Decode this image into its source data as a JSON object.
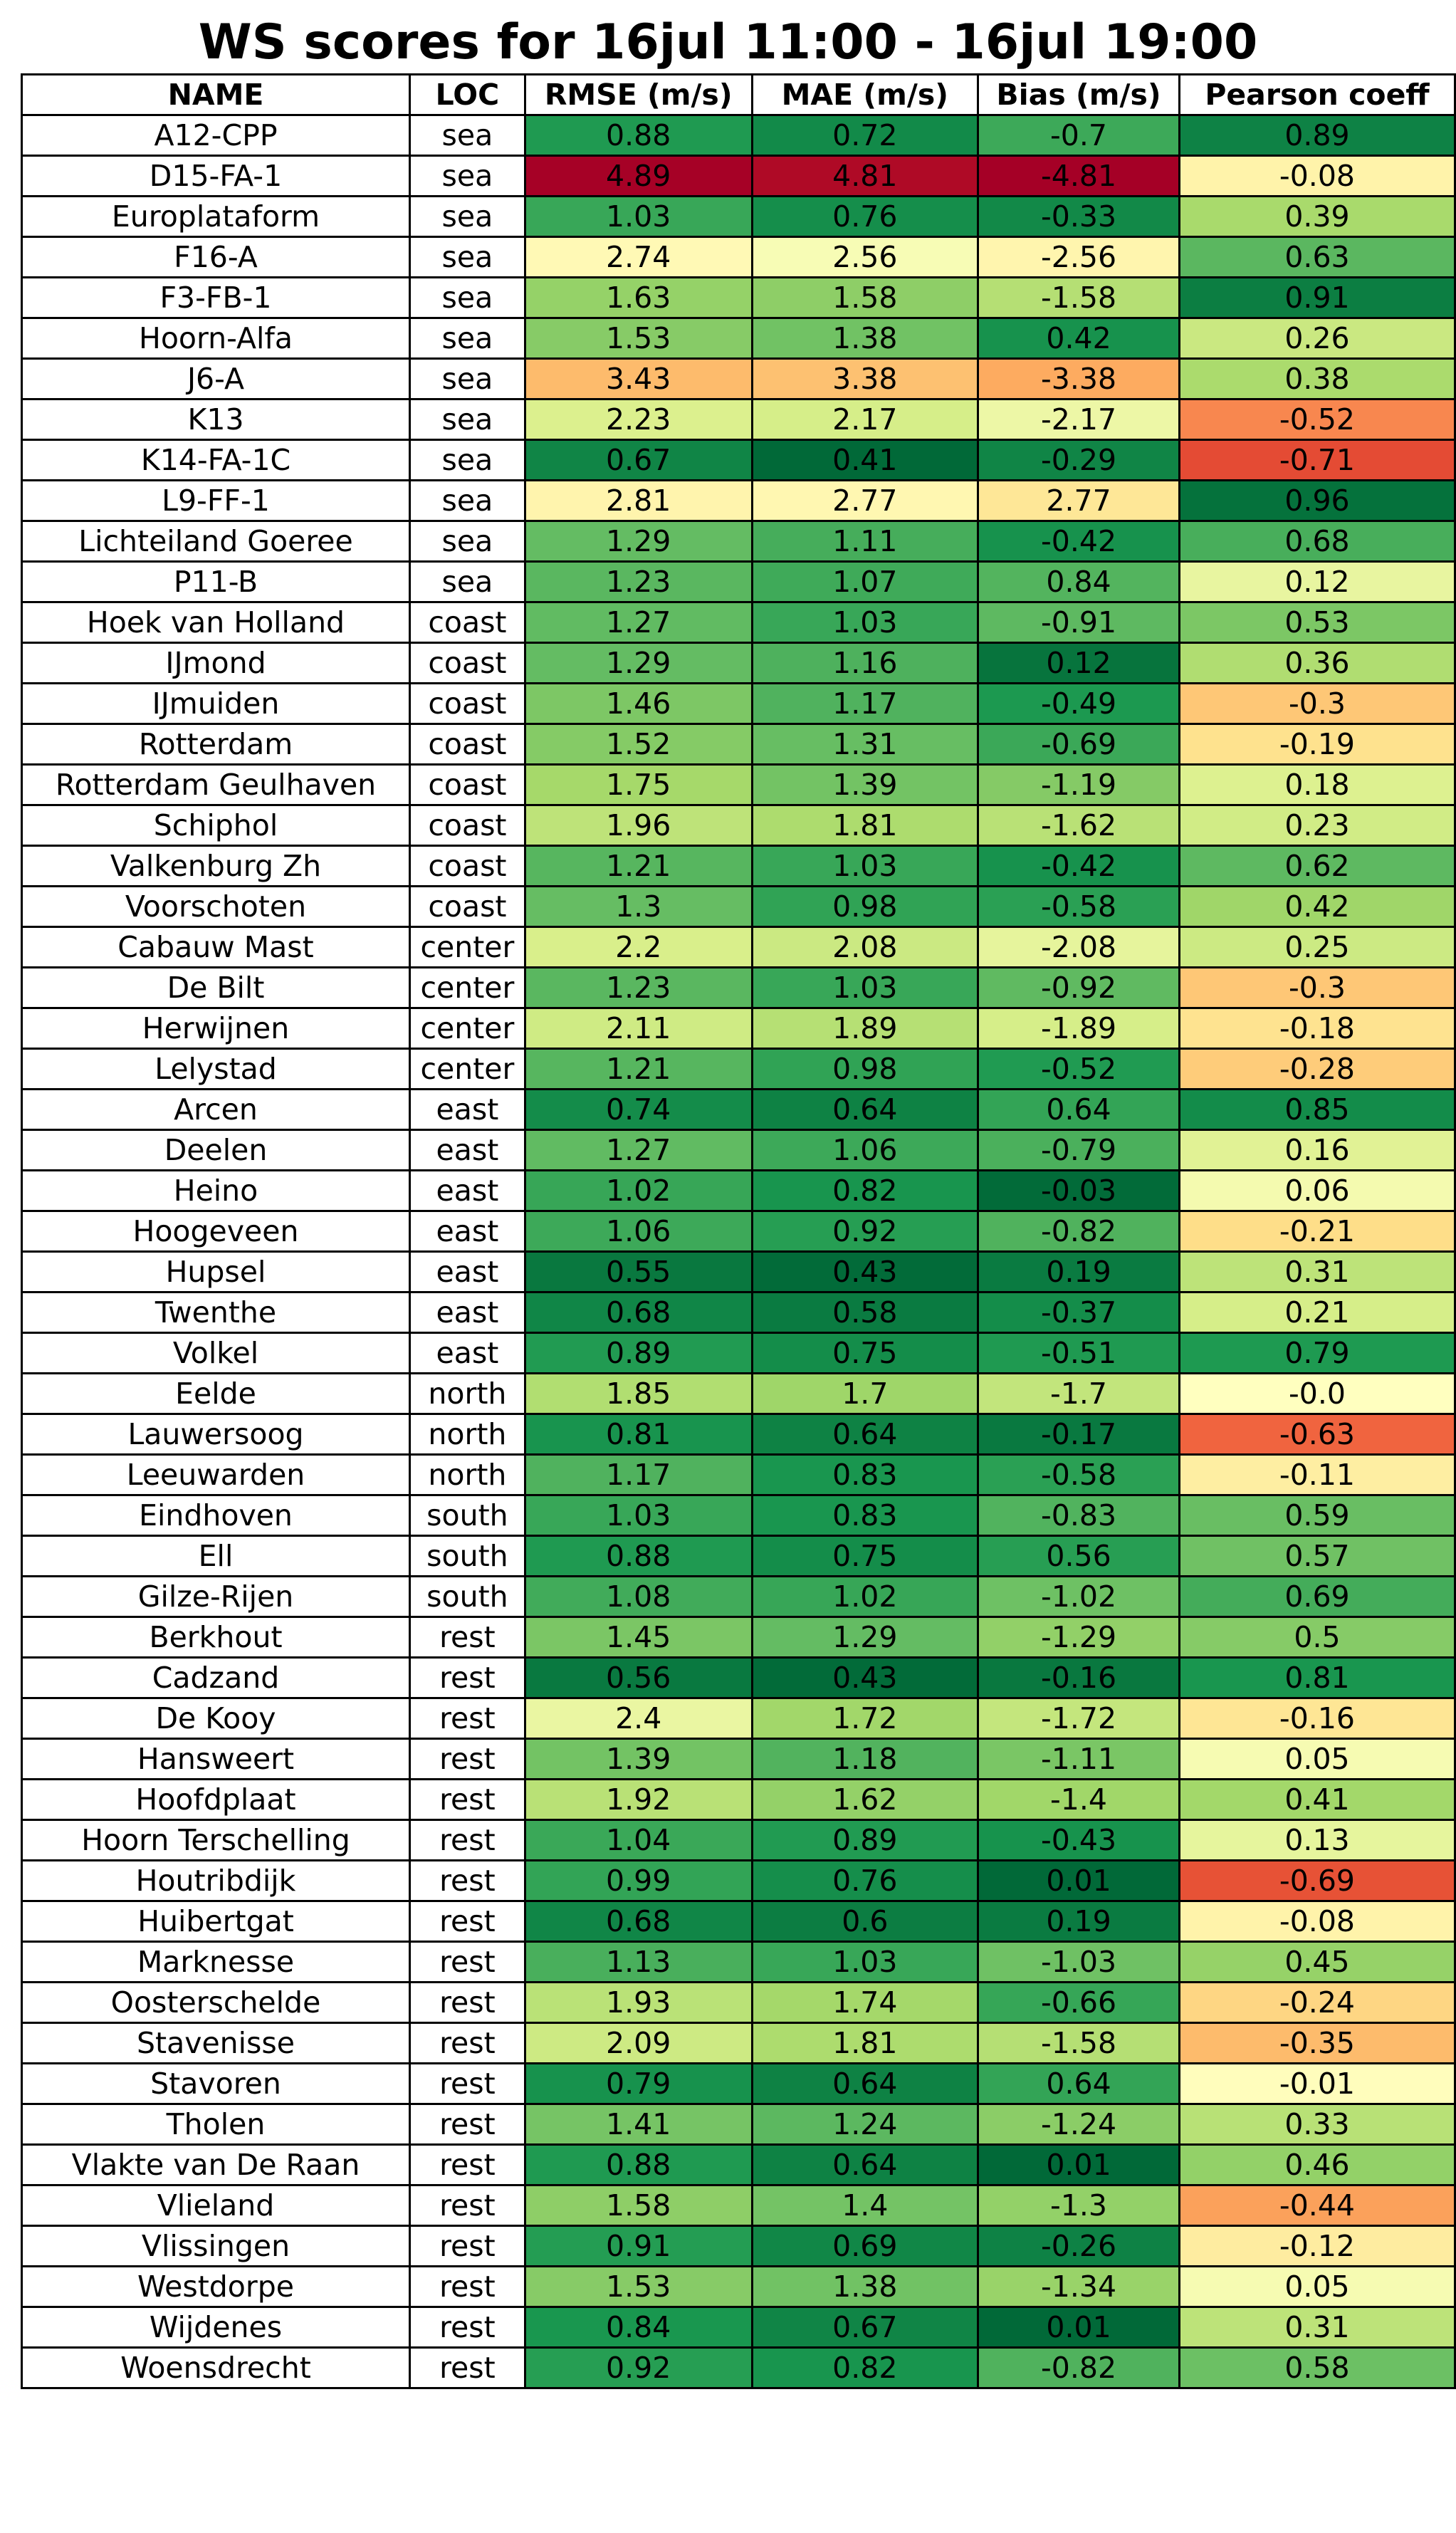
{
  "chart_data": {
    "type": "table",
    "title": "WS scores for 16jul 11:00 - 16jul 19:00",
    "columns": [
      "NAME",
      "LOC",
      "RMSE (m/s)",
      "MAE (m/s)",
      "Bias (m/s)",
      "Pearson coeff"
    ],
    "colors": {
      "red": "#a50026",
      "orange": "#f88d52",
      "yellow": "#ffffbf",
      "lightgreen": "#a6d96a",
      "green": "#1a9850",
      "darkgreen": "#006837"
    },
    "rows": [
      [
        "A12-CPP",
        "sea",
        "0.88",
        "0.72",
        "-0.7",
        "0.89"
      ],
      [
        "D15-FA-1",
        "sea",
        "4.89",
        "4.81",
        "-4.81",
        "-0.08"
      ],
      [
        "Europlataform",
        "sea",
        "1.03",
        "0.76",
        "-0.33",
        "0.39"
      ],
      [
        "F16-A",
        "sea",
        "2.74",
        "2.56",
        "-2.56",
        "0.63"
      ],
      [
        "F3-FB-1",
        "sea",
        "1.63",
        "1.58",
        "-1.58",
        "0.91"
      ],
      [
        "Hoorn-Alfa",
        "sea",
        "1.53",
        "1.38",
        "0.42",
        "0.26"
      ],
      [
        "J6-A",
        "sea",
        "3.43",
        "3.38",
        "-3.38",
        "0.38"
      ],
      [
        "K13",
        "sea",
        "2.23",
        "2.17",
        "-2.17",
        "-0.52"
      ],
      [
        "K14-FA-1C",
        "sea",
        "0.67",
        "0.41",
        "-0.29",
        "-0.71"
      ],
      [
        "L9-FF-1",
        "sea",
        "2.81",
        "2.77",
        "2.77",
        "0.96"
      ],
      [
        "Lichteiland Goeree",
        "sea",
        "1.29",
        "1.11",
        "-0.42",
        "0.68"
      ],
      [
        "P11-B",
        "sea",
        "1.23",
        "1.07",
        "0.84",
        "0.12"
      ],
      [
        "Hoek van Holland",
        "coast",
        "1.27",
        "1.03",
        "-0.91",
        "0.53"
      ],
      [
        "IJmond",
        "coast",
        "1.29",
        "1.16",
        "0.12",
        "0.36"
      ],
      [
        "IJmuiden",
        "coast",
        "1.46",
        "1.17",
        "-0.49",
        "-0.3"
      ],
      [
        "Rotterdam",
        "coast",
        "1.52",
        "1.31",
        "-0.69",
        "-0.19"
      ],
      [
        "Rotterdam Geulhaven",
        "coast",
        "1.75",
        "1.39",
        "-1.19",
        "0.18"
      ],
      [
        "Schiphol",
        "coast",
        "1.96",
        "1.81",
        "-1.62",
        "0.23"
      ],
      [
        "Valkenburg Zh",
        "coast",
        "1.21",
        "1.03",
        "-0.42",
        "0.62"
      ],
      [
        "Voorschoten",
        "coast",
        "1.3",
        "0.98",
        "-0.58",
        "0.42"
      ],
      [
        "Cabauw Mast",
        "center",
        "2.2",
        "2.08",
        "-2.08",
        "0.25"
      ],
      [
        "De Bilt",
        "center",
        "1.23",
        "1.03",
        "-0.92",
        "-0.3"
      ],
      [
        "Herwijnen",
        "center",
        "2.11",
        "1.89",
        "-1.89",
        "-0.18"
      ],
      [
        "Lelystad",
        "center",
        "1.21",
        "0.98",
        "-0.52",
        "-0.28"
      ],
      [
        "Arcen",
        "east",
        "0.74",
        "0.64",
        "0.64",
        "0.85"
      ],
      [
        "Deelen",
        "east",
        "1.27",
        "1.06",
        "-0.79",
        "0.16"
      ],
      [
        "Heino",
        "east",
        "1.02",
        "0.82",
        "-0.03",
        "0.06"
      ],
      [
        "Hoogeveen",
        "east",
        "1.06",
        "0.92",
        "-0.82",
        "-0.21"
      ],
      [
        "Hupsel",
        "east",
        "0.55",
        "0.43",
        "0.19",
        "0.31"
      ],
      [
        "Twenthe",
        "east",
        "0.68",
        "0.58",
        "-0.37",
        "0.21"
      ],
      [
        "Volkel",
        "east",
        "0.89",
        "0.75",
        "-0.51",
        "0.79"
      ],
      [
        "Eelde",
        "north",
        "1.85",
        "1.7",
        "-1.7",
        "-0.0"
      ],
      [
        "Lauwersoog",
        "north",
        "0.81",
        "0.64",
        "-0.17",
        "-0.63"
      ],
      [
        "Leeuwarden",
        "north",
        "1.17",
        "0.83",
        "-0.58",
        "-0.11"
      ],
      [
        "Eindhoven",
        "south",
        "1.03",
        "0.83",
        "-0.83",
        "0.59"
      ],
      [
        "Ell",
        "south",
        "0.88",
        "0.75",
        "0.56",
        "0.57"
      ],
      [
        "Gilze-Rijen",
        "south",
        "1.08",
        "1.02",
        "-1.02",
        "0.69"
      ],
      [
        "Berkhout",
        "rest",
        "1.45",
        "1.29",
        "-1.29",
        "0.5"
      ],
      [
        "Cadzand",
        "rest",
        "0.56",
        "0.43",
        "-0.16",
        "0.81"
      ],
      [
        "De Kooy",
        "rest",
        "2.4",
        "1.72",
        "-1.72",
        "-0.16"
      ],
      [
        "Hansweert",
        "rest",
        "1.39",
        "1.18",
        "-1.11",
        "0.05"
      ],
      [
        "Hoofdplaat",
        "rest",
        "1.92",
        "1.62",
        "-1.4",
        "0.41"
      ],
      [
        "Hoorn Terschelling",
        "rest",
        "1.04",
        "0.89",
        "-0.43",
        "0.13"
      ],
      [
        "Houtribdijk",
        "rest",
        "0.99",
        "0.76",
        "0.01",
        "-0.69"
      ],
      [
        "Huibertgat",
        "rest",
        "0.68",
        "0.6",
        "0.19",
        "-0.08"
      ],
      [
        "Marknesse",
        "rest",
        "1.13",
        "1.03",
        "-1.03",
        "0.45"
      ],
      [
        "Oosterschelde",
        "rest",
        "1.93",
        "1.74",
        "-0.66",
        "-0.24"
      ],
      [
        "Stavenisse",
        "rest",
        "2.09",
        "1.81",
        "-1.58",
        "-0.35"
      ],
      [
        "Stavoren",
        "rest",
        "0.79",
        "0.64",
        "0.64",
        "-0.01"
      ],
      [
        "Tholen",
        "rest",
        "1.41",
        "1.24",
        "-1.24",
        "0.33"
      ],
      [
        "Vlakte van De Raan",
        "rest",
        "0.88",
        "0.64",
        "0.01",
        "0.46"
      ],
      [
        "Vlieland",
        "rest",
        "1.58",
        "1.4",
        "-1.3",
        "-0.44"
      ],
      [
        "Vlissingen",
        "rest",
        "0.91",
        "0.69",
        "-0.26",
        "-0.12"
      ],
      [
        "Westdorpe",
        "rest",
        "1.53",
        "1.38",
        "-1.34",
        "0.05"
      ],
      [
        "Wijdenes",
        "rest",
        "0.84",
        "0.67",
        "0.01",
        "0.31"
      ],
      [
        "Woensdrecht",
        "rest",
        "0.92",
        "0.82",
        "-0.82",
        "0.58"
      ]
    ]
  }
}
